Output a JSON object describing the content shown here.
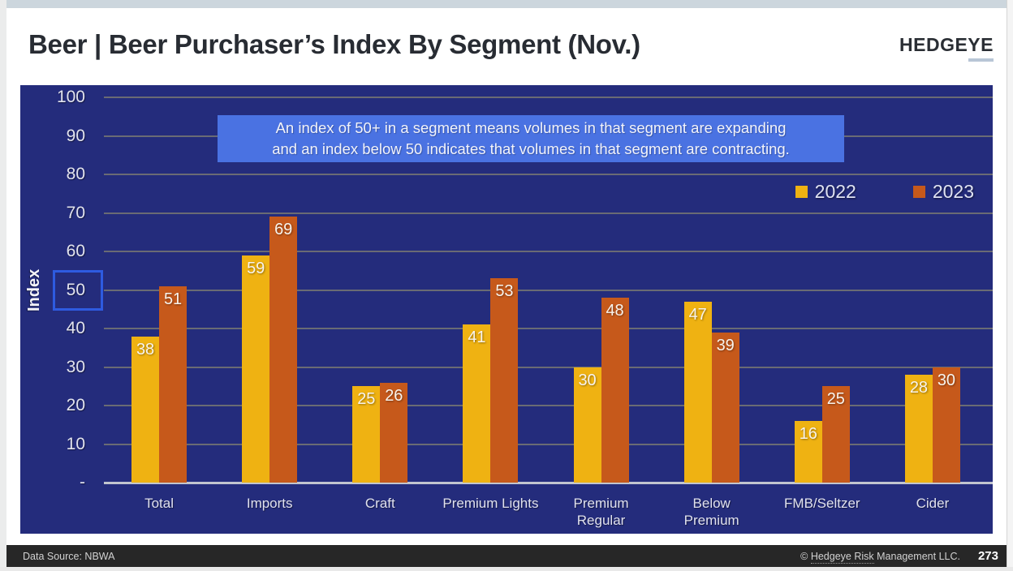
{
  "header": {
    "title": "Beer | Beer Purchaser’s Index By Segment (Nov.)",
    "logo": "HEDGEYE"
  },
  "chart_data": {
    "type": "bar",
    "title": "Beer Purchaser's Index By Segment (Nov.)",
    "xlabel": "",
    "ylabel": "Index",
    "ylim": [
      0,
      100
    ],
    "ytick_interval": 10,
    "zero_tick_label": "-",
    "highlighted_tick": 50,
    "grid": true,
    "legend_position": "top-right",
    "value_labels_shown": true,
    "categories": [
      "Total",
      "Imports",
      "Craft",
      "Premium Lights",
      "Premium\nRegular",
      "Below\nPremium",
      "FMB/Seltzer",
      "Cider"
    ],
    "series": [
      {
        "name": "2022",
        "color": "#EFB212",
        "values": [
          38,
          59,
          25,
          41,
          30,
          47,
          16,
          28
        ]
      },
      {
        "name": "2023",
        "color": "#C6591B",
        "values": [
          51,
          69,
          26,
          53,
          48,
          39,
          25,
          30
        ]
      }
    ],
    "annotation": "An index of 50+ in a segment means volumes in that segment are expanding and an index below 50 indicates that volumes in that segment are contracting."
  },
  "annotation": {
    "line1": "An index of 50+ in a segment means volumes in that segment are expanding",
    "line2": "and an index below 50 indicates that volumes in that segment are contracting."
  },
  "footer": {
    "data_source": "Data Source: NBWA",
    "copyright_prefix": "© ",
    "copyright_underlined": "Hedgeye Risk",
    "copyright_suffix": " Management LLC.",
    "page_number": "273"
  },
  "colors": {
    "panel_bg": "#242C7C",
    "annotation_bg": "#4A72E2",
    "highlight_box_border": "#2E5BE0",
    "top_strip": "#CCD6DD",
    "footer_bg": "#272727",
    "grid": "#6A6B74",
    "baseline": "#C2C5CF",
    "series_2022": "#EFB212",
    "series_2023": "#C6591B"
  }
}
